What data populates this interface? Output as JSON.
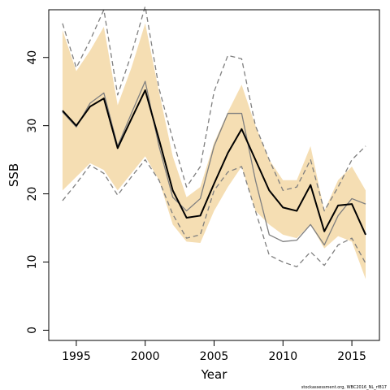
{
  "chart_data": {
    "type": "line",
    "title": "",
    "xlabel": "Year",
    "ylabel": "SSB",
    "xlim": [
      1993,
      2017
    ],
    "ylim": [
      -1.5,
      47
    ],
    "x_ticks": [
      1995,
      2000,
      2005,
      2010,
      2015
    ],
    "y_ticks": [
      0,
      10,
      20,
      30,
      40
    ],
    "grid": false,
    "legend": "none",
    "credit": "stockassessment.org, WBC2016_NL_rf817",
    "x": [
      1994,
      1995,
      1996,
      1997,
      1998,
      1999,
      2000,
      2001,
      2002,
      2003,
      2004,
      2005,
      2006,
      2007,
      2008,
      2009,
      2010,
      2011,
      2012,
      2013,
      2014,
      2015,
      2016
    ],
    "series": [
      {
        "role": "ci_band",
        "color": "#f5deb3",
        "lower": [
          20.5,
          22.5,
          24.5,
          23.5,
          20.5,
          23.0,
          25.5,
          22.0,
          15.5,
          13.0,
          12.8,
          17.5,
          21.0,
          24.0,
          17.5,
          15.5,
          14.0,
          13.5,
          15.5,
          12.0,
          13.8,
          13.0,
          7.5
        ],
        "upper": [
          44.0,
          38.0,
          41.0,
          44.5,
          33.0,
          38.5,
          45.0,
          35.0,
          25.5,
          19.5,
          21.0,
          27.5,
          32.0,
          36.0,
          30.0,
          25.0,
          22.0,
          22.0,
          27.0,
          17.5,
          22.0,
          24.0,
          20.5
        ]
      },
      {
        "role": "estimate",
        "color": "#000000",
        "values": [
          32.2,
          30.0,
          32.8,
          34.0,
          26.7,
          31.0,
          35.2,
          28.0,
          20.5,
          16.5,
          16.8,
          21.5,
          26.0,
          29.5,
          25.0,
          20.5,
          18.0,
          17.5,
          21.3,
          14.5,
          18.3,
          18.5,
          14.0
        ]
      },
      {
        "role": "alt_estimate",
        "color": "#7f7f7f",
        "values": [
          32.0,
          29.8,
          33.3,
          34.8,
          27.0,
          31.8,
          36.5,
          27.0,
          19.5,
          17.5,
          19.3,
          27.0,
          31.8,
          31.8,
          22.0,
          14.0,
          13.0,
          13.2,
          15.5,
          12.5,
          16.8,
          19.3,
          18.5
        ]
      },
      {
        "role": "alt_upper",
        "color": "#7f7f7f",
        "dash": true,
        "values": [
          45.0,
          38.5,
          42.5,
          47.0,
          34.5,
          40.5,
          47.5,
          35.5,
          28.0,
          21.0,
          24.0,
          35.0,
          40.3,
          39.8,
          30.0,
          25.0,
          20.5,
          21.0,
          25.0,
          17.5,
          21.0,
          25.0,
          27.0
        ]
      },
      {
        "role": "alt_lower",
        "color": "#7f7f7f",
        "dash": true,
        "values": [
          19.0,
          21.5,
          24.2,
          23.0,
          19.8,
          22.5,
          25.0,
          22.0,
          17.0,
          13.5,
          14.0,
          20.5,
          23.2,
          24.0,
          17.5,
          11.0,
          10.0,
          9.3,
          11.5,
          9.5,
          12.5,
          13.5,
          9.8
        ]
      }
    ]
  }
}
